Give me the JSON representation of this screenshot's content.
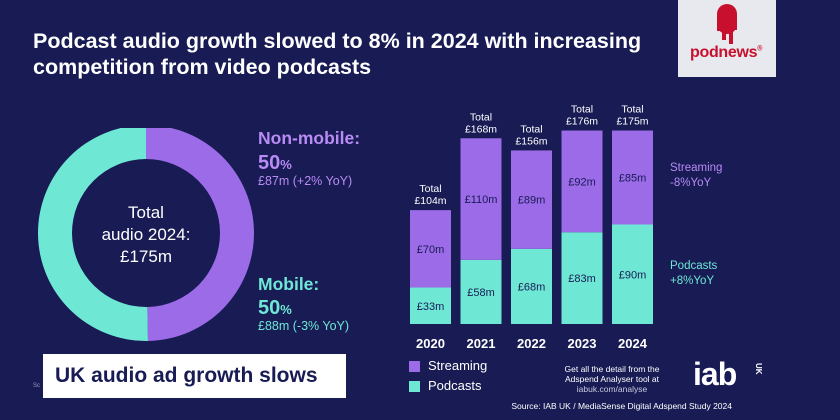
{
  "headline": "Podcast audio growth slowed to 8% in 2024 with increasing competition from video podcasts",
  "logo": {
    "text": "podnews",
    "reg": "®"
  },
  "colors": {
    "background": "#181B54",
    "streaming": "#9B6BE8",
    "podcasts": "#6EE8D5",
    "brand_red": "#C8102E"
  },
  "donut": {
    "center_lines": [
      "Total",
      "audio 2024:",
      "£175m"
    ],
    "non_mobile": {
      "label": "Non-mobile:",
      "pct": "50",
      "pct_unit": "%",
      "detail": "£87m (+2% YoY)"
    },
    "mobile": {
      "label": "Mobile:",
      "pct": "50",
      "pct_unit": "%",
      "detail": "£88m (-3% YoY)"
    }
  },
  "side_labels": {
    "streaming": [
      "Streaming",
      "-8%YoY"
    ],
    "podcasts": [
      "Podcasts",
      "+8%YoY"
    ]
  },
  "banner": "UK audio ad growth slows",
  "legend": {
    "streaming": "Streaming",
    "podcasts": "Podcasts"
  },
  "promo": {
    "line1": "Get all the detail from the",
    "line2": "Adspend Analyser tool at",
    "url": "iabuk.com/analyse"
  },
  "iab_logo": {
    "text": "iab",
    "suffix": "UK"
  },
  "source": "Source: IAB UK / MediaSense Digital Adspend Study 2024",
  "footer_mark": "Sc",
  "chart_data": [
    {
      "type": "pie",
      "title": "Total audio 2024: £175m",
      "labels": [
        "Non-mobile",
        "Mobile"
      ],
      "values": [
        87,
        88
      ],
      "percent": [
        50,
        50
      ],
      "unit": "£m"
    },
    {
      "type": "bar",
      "stacked": true,
      "categories": [
        "2020",
        "2021",
        "2022",
        "2023",
        "2024"
      ],
      "series": [
        {
          "name": "Podcasts",
          "values": [
            33,
            58,
            68,
            83,
            90
          ],
          "labels": [
            "£33m",
            "£58m",
            "£68m",
            "£83m",
            "£90m"
          ]
        },
        {
          "name": "Streaming",
          "values": [
            70,
            110,
            89,
            92,
            85
          ],
          "labels": [
            "£70m",
            "£110m",
            "£89m",
            "£92m",
            "£85m"
          ]
        }
      ],
      "totals": [
        104,
        168,
        156,
        176,
        175
      ],
      "total_labels": [
        [
          "Total",
          "£104m"
        ],
        [
          "Total",
          "£168m"
        ],
        [
          "Total",
          "£156m"
        ],
        [
          "Total",
          "£176m"
        ],
        [
          "Total",
          "£175m"
        ]
      ],
      "ylim": [
        0,
        180
      ],
      "unit": "£m"
    }
  ]
}
